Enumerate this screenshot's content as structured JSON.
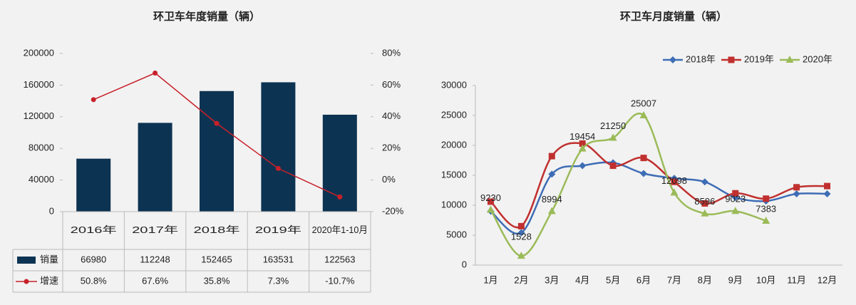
{
  "chart_data": [
    {
      "type": "bar-line",
      "title": "环卫车年度销量（辆）",
      "categories": [
        "2016年",
        "2017年",
        "2018年",
        "2019年",
        "2020年1-10月"
      ],
      "series": [
        {
          "name": "销量",
          "color": "#0d3352",
          "values": [
            66980,
            112248,
            152465,
            163531,
            122563
          ]
        },
        {
          "name": "增速",
          "color": "#c8202a",
          "axis": "y2",
          "values": [
            50.8,
            67.6,
            35.8,
            7.3,
            -10.7
          ],
          "value_labels": [
            "50.8%",
            "67.6%",
            "35.8%",
            "7.3%",
            "-10.7%"
          ]
        }
      ],
      "ylim": [
        0,
        200000
      ],
      "yticks": [
        0,
        40000,
        80000,
        120000,
        160000,
        200000
      ],
      "y2lim": [
        -20,
        80
      ],
      "y2ticks": [
        {
          "value": -20,
          "label": "-20%"
        },
        {
          "value": 0,
          "label": "0%"
        },
        {
          "value": 20,
          "label": "20%"
        },
        {
          "value": 40,
          "label": "40%"
        },
        {
          "value": 60,
          "label": "60%"
        },
        {
          "value": 80,
          "label": "80%"
        }
      ],
      "grid": false,
      "legend": "table"
    },
    {
      "type": "line",
      "title": "环卫车月度销量（辆）",
      "categories": [
        "1月",
        "2月",
        "3月",
        "4月",
        "5月",
        "6月",
        "7月",
        "8月",
        "9月",
        "10月",
        "11月",
        "12月"
      ],
      "series": [
        {
          "name": "2018年",
          "color": "#3e6db5",
          "marker": "diamond",
          "values": [
            9000,
            5400,
            15200,
            16600,
            17100,
            15300,
            14500,
            13900,
            11300,
            10700,
            11900,
            11900
          ]
        },
        {
          "name": "2019年",
          "color": "#c0302f",
          "marker": "square",
          "values": [
            10600,
            6500,
            18200,
            20300,
            16600,
            17900,
            13900,
            10300,
            12000,
            11100,
            13000,
            13200
          ]
        },
        {
          "name": "2020年",
          "color": "#9bbb59",
          "marker": "triangle",
          "labels": true,
          "values": [
            9230,
            1528,
            8994,
            19454,
            21250,
            25007,
            12098,
            8596,
            9023,
            7383,
            null,
            null
          ]
        }
      ],
      "ylim": [
        0,
        30000
      ],
      "yticks": [
        0,
        5000,
        10000,
        15000,
        20000,
        25000,
        30000
      ],
      "grid": false,
      "legend": "top-right"
    }
  ]
}
